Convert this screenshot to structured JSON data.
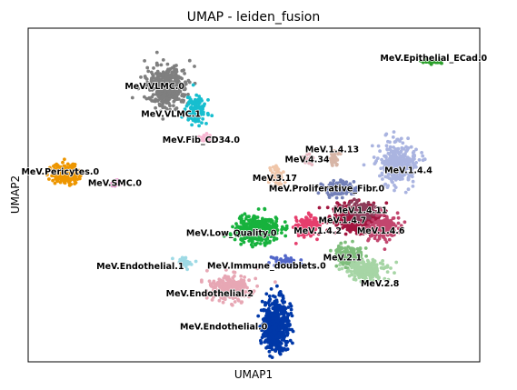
{
  "chart_data": {
    "type": "scatter",
    "title": "UMAP - leiden_fusion",
    "xlabel": "UMAP1",
    "ylabel": "UMAP2",
    "xlim": [
      0,
      100
    ],
    "ylim": [
      0,
      100
    ],
    "grid": false,
    "legend": "on-data",
    "clusters": [
      {
        "name": "MeV.Epithelial_ECad.0",
        "color": "#2ca02c",
        "x": 89.8,
        "y": 90.0,
        "label_x": 89.8,
        "label_y": 91.0
      },
      {
        "name": "MeV.VLMC.0",
        "color": "#7f7f7f",
        "x": 30.8,
        "y": 82.6,
        "label_x": 28.0,
        "label_y": 82.6
      },
      {
        "name": "MeV.VLMC.1",
        "color": "#17becf",
        "x": 37.2,
        "y": 75.3,
        "label_x": 31.6,
        "label_y": 74.2
      },
      {
        "name": "MeV.Fib_CD34.0",
        "color": "#f7b6d2",
        "x": 39.1,
        "y": 67.2,
        "label_x": 38.3,
        "label_y": 66.5
      },
      {
        "name": "MeV.Pericytes.0",
        "color": "#ed9600",
        "x": 8.3,
        "y": 56.4,
        "label_x": 7.1,
        "label_y": 56.9
      },
      {
        "name": "MeV.SMC.0",
        "color": "#e377c2",
        "x": 19.7,
        "y": 53.6,
        "label_x": 19.2,
        "label_y": 53.6
      },
      {
        "name": "MeV.1.4.13",
        "color": "#d7b5a6",
        "x": 67.8,
        "y": 61.2,
        "label_x": 67.3,
        "label_y": 63.6
      },
      {
        "name": "MeV.4.34",
        "color": "#e7b9c2",
        "x": 62.0,
        "y": 60.5,
        "label_x": 61.8,
        "label_y": 60.6
      },
      {
        "name": "MeV.3.17",
        "color": "#f0c6a9",
        "x": 54.8,
        "y": 55.5,
        "label_x": 54.6,
        "label_y": 55.1
      },
      {
        "name": "MeV.1.4.4",
        "color": "#aab4e0",
        "x": 81.9,
        "y": 59.5,
        "label_x": 84.2,
        "label_y": 57.4
      },
      {
        "name": "MeV.Proliferative_Fibr.0",
        "color": "#7380b8",
        "x": 69.1,
        "y": 52.0,
        "label_x": 66.1,
        "label_y": 51.9
      },
      {
        "name": "MeV.1.4.7",
        "color": "#a2163f",
        "x": 72.5,
        "y": 42.9,
        "label_x": 69.6,
        "label_y": 42.4
      },
      {
        "name": "MeV.1.4.11",
        "color": "#8c3d5a",
        "x": 73.8,
        "y": 45.0,
        "label_x": 73.6,
        "label_y": 45.4
      },
      {
        "name": "MeV.1.4.2",
        "color": "#e63e6d",
        "x": 61.9,
        "y": 40.8,
        "label_x": 64.1,
        "label_y": 39.3
      },
      {
        "name": "MeV.1.4.6",
        "color": "#c2466e",
        "x": 78.4,
        "y": 40.1,
        "label_x": 78.1,
        "label_y": 39.2
      },
      {
        "name": "MeV.Low_Quality.0",
        "color": "#17b23d",
        "x": 50.8,
        "y": 39.5,
        "label_x": 45.0,
        "label_y": 38.6
      },
      {
        "name": "MeV.2.1",
        "color": "#7fbe7c",
        "x": 71.3,
        "y": 32.0,
        "label_x": 69.6,
        "label_y": 31.2
      },
      {
        "name": "MeV.2.8",
        "color": "#a6d5a5",
        "x": 74.8,
        "y": 27.5,
        "label_x": 77.9,
        "label_y": 23.4
      },
      {
        "name": "MeV.Immune_doublets.0",
        "color": "#5267c9",
        "x": 57.0,
        "y": 30.2,
        "label_x": 52.8,
        "label_y": 28.8
      },
      {
        "name": "MeV.Endothelial.1",
        "color": "#9edae5",
        "x": 34.4,
        "y": 29.6,
        "label_x": 24.8,
        "label_y": 28.6
      },
      {
        "name": "MeV.Endothelial.2",
        "color": "#e7a7b4",
        "x": 44.8,
        "y": 22.2,
        "label_x": 40.2,
        "label_y": 20.5
      },
      {
        "name": "MeV.Endothelial.0",
        "color": "#0038a8",
        "x": 54.8,
        "y": 11.1,
        "label_x": 43.3,
        "label_y": 10.5
      }
    ]
  }
}
